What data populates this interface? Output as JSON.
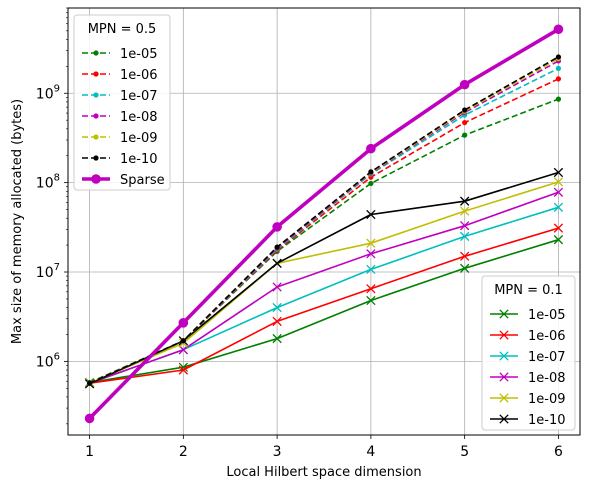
{
  "chart_data": {
    "type": "line",
    "xlabel": "Local Hilbert space dimension",
    "ylabel": "Max size of memory allocated (bytes)",
    "x": [
      1,
      2,
      3,
      4,
      5,
      6
    ],
    "xlim": [
      0.77,
      6.23
    ],
    "ylim": [
      150000,
      9000000000
    ],
    "yscale": "log",
    "grid": true,
    "x_tick_labels": [
      "1",
      "2",
      "3",
      "4",
      "5",
      "6"
    ],
    "y_ticks": [
      {
        "value": 1000000,
        "base": "10",
        "exp": "6"
      },
      {
        "value": 10000000,
        "base": "10",
        "exp": "7"
      },
      {
        "value": 100000000,
        "base": "10",
        "exp": "8"
      },
      {
        "value": 1000000000,
        "base": "10",
        "exp": "9"
      }
    ],
    "legends": [
      {
        "title": "MPN = 0.5",
        "placement": "top-left",
        "entries": [
          {
            "name": "1e-05",
            "color": "#008000",
            "style": "dashed",
            "marker": "dot",
            "values": [
              580000,
              1700000,
              17000000,
              98000000,
              340000000,
              860000000
            ]
          },
          {
            "name": "1e-06",
            "color": "#ff0000",
            "style": "dashed",
            "marker": "dot",
            "values": [
              570000,
              1700000,
              17500000,
              115000000,
              470000000,
              1450000000
            ]
          },
          {
            "name": "1e-07",
            "color": "#00bfbf",
            "style": "dashed",
            "marker": "dot",
            "values": [
              570000,
              1700000,
              18000000,
              125000000,
              570000000,
              1900000000
            ]
          },
          {
            "name": "1e-08",
            "color": "#bf00bf",
            "style": "dashed",
            "marker": "dot",
            "values": [
              570000,
              1700000,
              18500000,
              128000000,
              610000000,
              2300000000
            ]
          },
          {
            "name": "1e-09",
            "color": "#bfbf00",
            "style": "dashed",
            "marker": "dot",
            "values": [
              570000,
              1700000,
              19000000,
              130000000,
              630000000,
              2450000000
            ]
          },
          {
            "name": "1e-10",
            "color": "#000000",
            "style": "dashed",
            "marker": "dot",
            "values": [
              570000,
              1700000,
              19000000,
              132000000,
              650000000,
              2550000000
            ]
          },
          {
            "name": "Sparse",
            "color": "#bf00bf",
            "style": "solid-thick",
            "marker": "circle",
            "values": [
              230000,
              2700000,
              32000000,
              240000000,
              1250000000,
              5200000000
            ]
          }
        ]
      },
      {
        "title": "MPN = 0.1",
        "placement": "lower-right",
        "entries": [
          {
            "name": "1e-05",
            "color": "#008000",
            "style": "solid",
            "marker": "x",
            "values": [
              580000,
              860000,
              1800000,
              4800000,
              11000000,
              23000000
            ]
          },
          {
            "name": "1e-06",
            "color": "#ff0000",
            "style": "solid",
            "marker": "x",
            "values": [
              570000,
              800000,
              2800000,
              6500000,
              15000000,
              31000000
            ]
          },
          {
            "name": "1e-07",
            "color": "#00bfbf",
            "style": "solid",
            "marker": "x",
            "values": [
              570000,
              1350000,
              4000000,
              10700000,
              25000000,
              53000000
            ]
          },
          {
            "name": "1e-08",
            "color": "#bf00bf",
            "style": "solid",
            "marker": "x",
            "values": [
              570000,
              1350000,
              6800000,
              16000000,
              33000000,
              78000000
            ]
          },
          {
            "name": "1e-09",
            "color": "#bfbf00",
            "style": "solid",
            "marker": "x",
            "values": [
              570000,
              1600000,
              12500000,
              21000000,
              48000000,
              102000000
            ]
          },
          {
            "name": "1e-10",
            "color": "#000000",
            "style": "solid",
            "marker": "x",
            "values": [
              560000,
              1700000,
              12500000,
              44000000,
              62000000,
              130000000
            ]
          }
        ]
      }
    ]
  }
}
